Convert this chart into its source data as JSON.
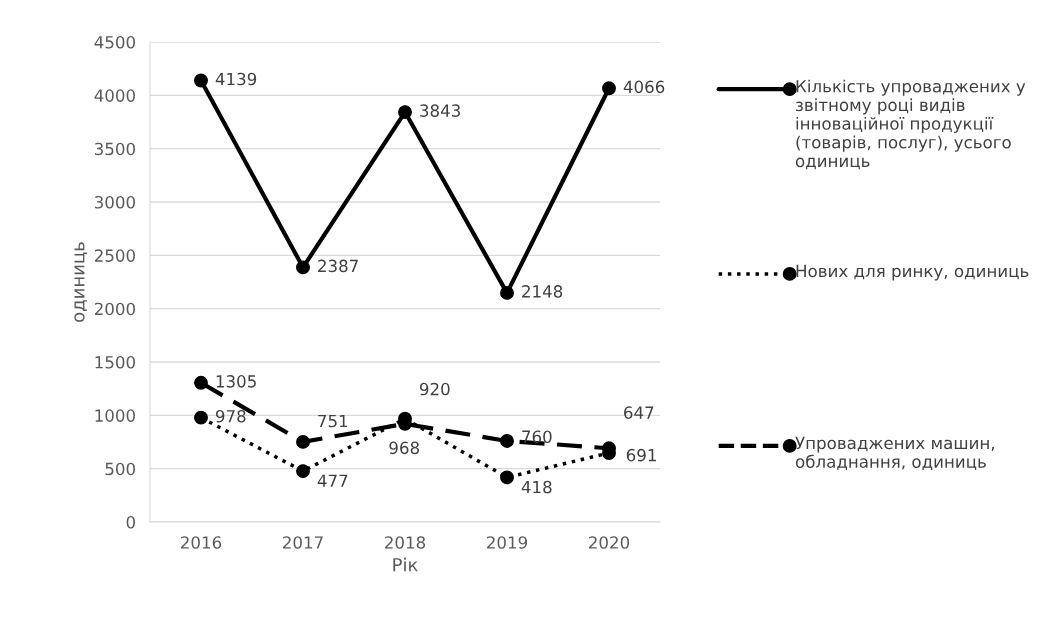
{
  "chart_data": {
    "type": "line",
    "xlabel": "Рік",
    "ylabel": "одиниць",
    "categories": [
      "2016",
      "2017",
      "2018",
      "2019",
      "2020"
    ],
    "series": [
      {
        "name": "Кількість упроваджених у звітному році видів інноваційної продукції (товарів, послуг), усього одиниць",
        "color": "#000000",
        "line_style": "solid",
        "values": [
          4139,
          2387,
          3843,
          2148,
          4066
        ]
      },
      {
        "name": "Нових для ринку, одиниць",
        "color": "#000000",
        "line_style": "dotted",
        "values": [
          978,
          477,
          968,
          418,
          647
        ]
      },
      {
        "name": "Упроваджених машин, обладнання, одиниць",
        "color": "#000000",
        "line_style": "dashed",
        "values": [
          1305,
          751,
          920,
          760,
          691
        ]
      }
    ],
    "ylim": [
      0,
      4500
    ],
    "yticks": [
      0,
      500,
      1000,
      1500,
      2000,
      2500,
      3000,
      3500,
      4000,
      4500
    ],
    "grid": "y",
    "legend": "right",
    "marker": "circle",
    "data_labels": true
  }
}
